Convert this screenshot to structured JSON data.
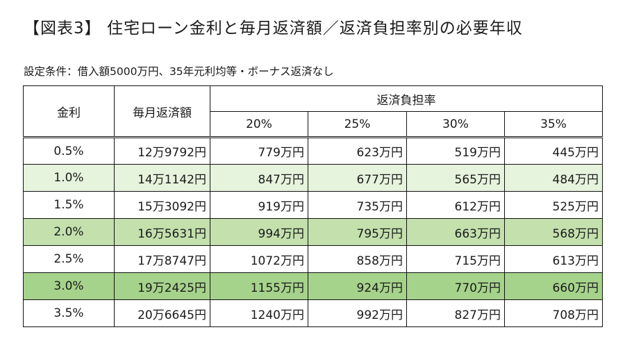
{
  "title": "【図表3】 住宅ローン金利と毎月返済額／返済負担率別の必要年収",
  "conditions": "設定条件：借入額5000万円、35年元利均等・ボーナス返済なし",
  "table": {
    "headers": {
      "rate": "金利",
      "monthly": "毎月返済額",
      "burden": "返済負担率",
      "ratios": [
        "20%",
        "25%",
        "30%",
        "35%"
      ]
    },
    "rows": [
      {
        "rate": "0.5%",
        "monthly": "12万9792円",
        "incomes": [
          "779万円",
          "623万円",
          "519万円",
          "445万円"
        ]
      },
      {
        "rate": "1.0%",
        "monthly": "14万1142円",
        "incomes": [
          "847万円",
          "677万円",
          "565万円",
          "484万円"
        ]
      },
      {
        "rate": "1.5%",
        "monthly": "15万3092円",
        "incomes": [
          "919万円",
          "735万円",
          "612万円",
          "525万円"
        ]
      },
      {
        "rate": "2.0%",
        "monthly": "16万5631円",
        "incomes": [
          "994万円",
          "795万円",
          "663万円",
          "568万円"
        ]
      },
      {
        "rate": "2.5%",
        "monthly": "17万8747円",
        "incomes": [
          "1072万円",
          "858万円",
          "715万円",
          "613万円"
        ]
      },
      {
        "rate": "3.0%",
        "monthly": "19万2425円",
        "incomes": [
          "1155万円",
          "924万円",
          "770万円",
          "660万円"
        ]
      },
      {
        "rate": "3.5%",
        "monthly": "20万6645円",
        "incomes": [
          "1240万円",
          "992万円",
          "827万円",
          "708万円"
        ]
      }
    ]
  },
  "colors": {
    "row_tint_light": "#e6f3dd",
    "row_tint_mid": "#c3e0ad",
    "row_tint_strong": "#a6d38b",
    "border": "#111111"
  }
}
